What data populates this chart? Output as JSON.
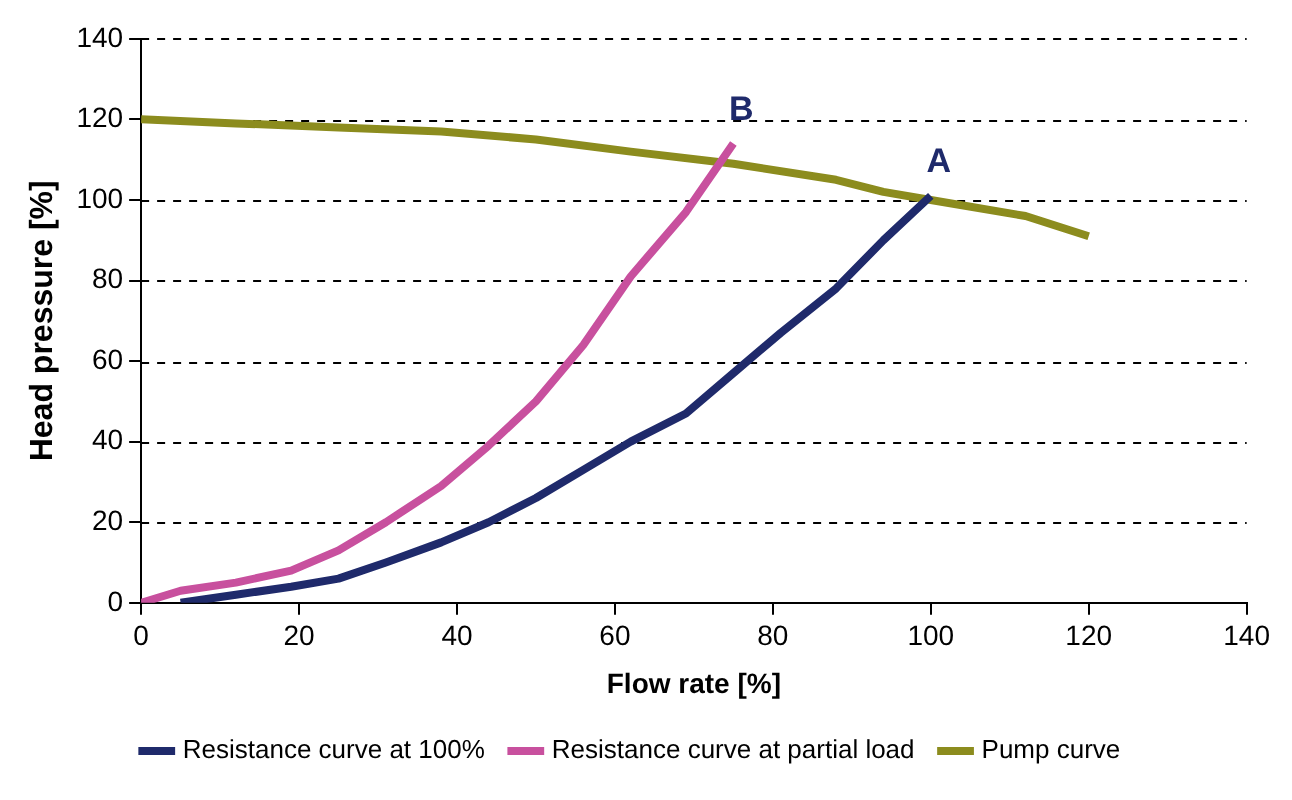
{
  "chart_data": {
    "type": "line",
    "xlabel": "Flow rate [%]",
    "ylabel": "Head pressure [%]",
    "xlim": [
      0,
      140
    ],
    "xticks": [
      0,
      20,
      40,
      60,
      80,
      100,
      120,
      140
    ],
    "ylim": [
      0,
      140
    ],
    "yticks": [
      0,
      20,
      40,
      60,
      80,
      100,
      120,
      140
    ],
    "grid": "y",
    "legend": "bottom",
    "marker": "none",
    "line_style": "solid",
    "series": [
      {
        "name": "Resistance curve at 100%",
        "color": "#1f2a6b",
        "x": [
          5,
          12,
          19,
          25,
          31,
          38,
          44,
          50,
          56,
          62,
          69,
          75,
          81,
          88,
          94,
          100
        ],
        "values": [
          0,
          2,
          4,
          6,
          10,
          15,
          20,
          26,
          33,
          40,
          47,
          57,
          67,
          78,
          90,
          101
        ]
      },
      {
        "name": "Resistance curve at partial load",
        "color": "#c8509e",
        "x": [
          0,
          5,
          12,
          19,
          25,
          31,
          38,
          44,
          50,
          56,
          62,
          69,
          75
        ],
        "values": [
          0,
          3,
          5,
          8,
          13,
          20,
          29,
          39,
          50,
          64,
          81,
          97,
          114
        ]
      },
      {
        "name": "Pump curve",
        "color": "#8c8c1e",
        "x": [
          0,
          12,
          25,
          38,
          50,
          62,
          75,
          88,
          94,
          100,
          112,
          120
        ],
        "values": [
          120,
          119,
          118,
          117,
          115,
          112,
          109,
          105,
          102,
          100,
          96,
          91
        ]
      }
    ],
    "annotations": [
      {
        "text": "A",
        "x": 100,
        "y": 101
      },
      {
        "text": "B",
        "x": 75,
        "y": 114
      }
    ]
  }
}
